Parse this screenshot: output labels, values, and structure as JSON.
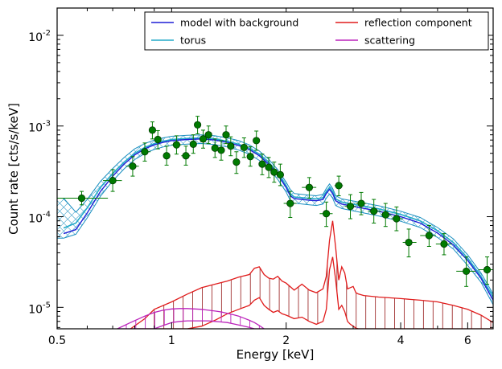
{
  "chart_data": {
    "type": "scatter",
    "xlabel": "Energy [keV]",
    "ylabel": "Count rate [cts/s/keV]",
    "x_scale": "log",
    "y_scale": "log",
    "xlim": [
      0.5,
      7.0
    ],
    "ylim": [
      5.8e-06,
      0.02
    ],
    "x_ticks": [
      {
        "value": 0.5,
        "label": "0.5"
      },
      {
        "value": 1,
        "label": "1"
      },
      {
        "value": 2,
        "label": "2"
      },
      {
        "value": 4,
        "label": "4"
      },
      {
        "value": 6,
        "label": "6"
      }
    ],
    "y_ticks": [
      {
        "value": 1e-05,
        "base": "10",
        "exp": "-5"
      },
      {
        "value": 0.0001,
        "base": "10",
        "exp": "-4"
      },
      {
        "value": 0.001,
        "base": "10",
        "exp": "-3"
      },
      {
        "value": 0.01,
        "base": "10",
        "exp": "-2"
      }
    ],
    "grid": false,
    "legend_position": "top-right",
    "legend": [
      {
        "label": "model with background",
        "color": "#1f1fd6"
      },
      {
        "label": "reflection component",
        "color": "#e01b1b"
      },
      {
        "label": "torus",
        "color": "#22aac8"
      },
      {
        "label": "scattering",
        "color": "#bb22bb"
      }
    ],
    "data_points": [
      {
        "x": 0.58,
        "y": 0.00016,
        "xlo": 0.45,
        "xhi": 0.68,
        "ylo": 0.000135,
        "yhi": 0.00019
      },
      {
        "x": 0.7,
        "y": 0.00025,
        "xlo": 0.66,
        "xhi": 0.74,
        "ylo": 0.00019,
        "yhi": 0.00033
      },
      {
        "x": 0.79,
        "y": 0.00036,
        "xlo": 0.76,
        "xhi": 0.82,
        "ylo": 0.00028,
        "yhi": 0.00046
      },
      {
        "x": 0.85,
        "y": 0.00052,
        "xlo": 0.83,
        "xhi": 0.88,
        "ylo": 0.00041,
        "yhi": 0.00065
      },
      {
        "x": 0.89,
        "y": 0.0009,
        "xlo": 0.875,
        "xhi": 0.905,
        "ylo": 0.00072,
        "yhi": 0.00111
      },
      {
        "x": 0.92,
        "y": 0.00071,
        "xlo": 0.905,
        "xhi": 0.935,
        "ylo": 0.00056,
        "yhi": 0.00089
      },
      {
        "x": 0.97,
        "y": 0.00047,
        "xlo": 0.95,
        "xhi": 0.99,
        "ylo": 0.00037,
        "yhi": 0.0006
      },
      {
        "x": 1.03,
        "y": 0.00062,
        "xlo": 1.0,
        "xhi": 1.06,
        "ylo": 0.00049,
        "yhi": 0.00078
      },
      {
        "x": 1.09,
        "y": 0.00047,
        "xlo": 1.06,
        "xhi": 1.12,
        "ylo": 0.00037,
        "yhi": 0.0006
      },
      {
        "x": 1.14,
        "y": 0.00063,
        "xlo": 1.12,
        "xhi": 1.16,
        "ylo": 0.0005,
        "yhi": 0.0008
      },
      {
        "x": 1.17,
        "y": 0.00103,
        "xlo": 1.16,
        "xhi": 1.19,
        "ylo": 0.00082,
        "yhi": 0.00128
      },
      {
        "x": 1.21,
        "y": 0.00072,
        "xlo": 1.19,
        "xhi": 1.23,
        "ylo": 0.00057,
        "yhi": 0.0009
      },
      {
        "x": 1.25,
        "y": 0.0008,
        "xlo": 1.23,
        "xhi": 1.27,
        "ylo": 0.00064,
        "yhi": 0.001
      },
      {
        "x": 1.3,
        "y": 0.00057,
        "xlo": 1.28,
        "xhi": 1.32,
        "ylo": 0.00045,
        "yhi": 0.00072
      },
      {
        "x": 1.35,
        "y": 0.00054,
        "xlo": 1.33,
        "xhi": 1.37,
        "ylo": 0.00042,
        "yhi": 0.00069
      },
      {
        "x": 1.39,
        "y": 0.0008,
        "xlo": 1.37,
        "xhi": 1.41,
        "ylo": 0.00064,
        "yhi": 0.001
      },
      {
        "x": 1.43,
        "y": 0.0006,
        "xlo": 1.41,
        "xhi": 1.45,
        "ylo": 0.00047,
        "yhi": 0.00076
      },
      {
        "x": 1.48,
        "y": 0.0004,
        "xlo": 1.46,
        "xhi": 1.51,
        "ylo": 0.0003,
        "yhi": 0.00052
      },
      {
        "x": 1.55,
        "y": 0.00058,
        "xlo": 1.52,
        "xhi": 1.58,
        "ylo": 0.00045,
        "yhi": 0.00074
      },
      {
        "x": 1.61,
        "y": 0.00046,
        "xlo": 1.58,
        "xhi": 1.64,
        "ylo": 0.00036,
        "yhi": 0.00059
      },
      {
        "x": 1.67,
        "y": 0.00069,
        "xlo": 1.65,
        "xhi": 1.7,
        "ylo": 0.00054,
        "yhi": 0.00088
      },
      {
        "x": 1.73,
        "y": 0.00038,
        "xlo": 1.7,
        "xhi": 1.77,
        "ylo": 0.00029,
        "yhi": 0.00049
      },
      {
        "x": 1.8,
        "y": 0.00035,
        "xlo": 1.77,
        "xhi": 1.83,
        "ylo": 0.00027,
        "yhi": 0.00045
      },
      {
        "x": 1.86,
        "y": 0.00031,
        "xlo": 1.83,
        "xhi": 1.89,
        "ylo": 0.00024,
        "yhi": 0.0004
      },
      {
        "x": 1.93,
        "y": 0.00029,
        "xlo": 1.89,
        "xhi": 1.97,
        "ylo": 0.00022,
        "yhi": 0.00038
      },
      {
        "x": 2.05,
        "y": 0.00014,
        "xlo": 1.97,
        "xhi": 2.13,
        "ylo": 9.8e-05,
        "yhi": 0.00019
      },
      {
        "x": 2.3,
        "y": 0.00021,
        "xlo": 2.2,
        "xhi": 2.4,
        "ylo": 0.00016,
        "yhi": 0.00027
      },
      {
        "x": 2.55,
        "y": 0.000108,
        "xlo": 2.45,
        "xhi": 2.65,
        "ylo": 7.8e-05,
        "yhi": 0.000145
      },
      {
        "x": 2.75,
        "y": 0.00022,
        "xlo": 2.68,
        "xhi": 2.82,
        "ylo": 0.00017,
        "yhi": 0.00028
      },
      {
        "x": 2.95,
        "y": 0.00013,
        "xlo": 2.85,
        "xhi": 3.05,
        "ylo": 9.5e-05,
        "yhi": 0.000175
      },
      {
        "x": 3.15,
        "y": 0.00014,
        "xlo": 3.05,
        "xhi": 3.25,
        "ylo": 0.000105,
        "yhi": 0.000185
      },
      {
        "x": 3.4,
        "y": 0.000115,
        "xlo": 3.28,
        "xhi": 3.55,
        "ylo": 8.5e-05,
        "yhi": 0.000155
      },
      {
        "x": 3.65,
        "y": 0.000105,
        "xlo": 3.55,
        "xhi": 3.78,
        "ylo": 7.8e-05,
        "yhi": 0.00014
      },
      {
        "x": 3.9,
        "y": 9.5e-05,
        "xlo": 3.78,
        "xhi": 4.05,
        "ylo": 7e-05,
        "yhi": 0.000128
      },
      {
        "x": 4.2,
        "y": 5.2e-05,
        "xlo": 4.05,
        "xhi": 4.4,
        "ylo": 3.6e-05,
        "yhi": 7.3e-05
      },
      {
        "x": 4.75,
        "y": 6.2e-05,
        "xlo": 4.5,
        "xhi": 4.95,
        "ylo": 4.7e-05,
        "yhi": 8e-05
      },
      {
        "x": 5.2,
        "y": 5e-05,
        "xlo": 4.95,
        "xhi": 5.45,
        "ylo": 3.8e-05,
        "yhi": 6.5e-05
      },
      {
        "x": 5.95,
        "y": 2.5e-05,
        "xlo": 5.6,
        "xhi": 6.3,
        "ylo": 1.7e-05,
        "yhi": 3.6e-05
      },
      {
        "x": 6.75,
        "y": 2.6e-05,
        "xlo": 6.4,
        "xhi": 7.0,
        "ylo": 1.8e-05,
        "yhi": 3.6e-05
      }
    ],
    "model_with_background": {
      "x": [
        0.52,
        0.56,
        0.6,
        0.65,
        0.7,
        0.75,
        0.8,
        0.85,
        0.9,
        0.95,
        1.0,
        1.1,
        1.2,
        1.3,
        1.4,
        1.5,
        1.6,
        1.7,
        1.8,
        1.9,
        2.0,
        2.05,
        2.1,
        2.2,
        2.3,
        2.4,
        2.5,
        2.55,
        2.6,
        2.65,
        2.7,
        2.8,
        3.0,
        3.5,
        4.0,
        4.5,
        5.0,
        5.5,
        6.0,
        6.5,
        7.0
      ],
      "y": [
        6.5e-05,
        7.2e-05,
        0.00011,
        0.00019,
        0.00028,
        0.00038,
        0.00048,
        0.00056,
        0.00062,
        0.00066,
        0.00069,
        0.00071,
        0.00072,
        0.0007,
        0.00066,
        0.00061,
        0.00055,
        0.00047,
        0.00038,
        0.00029,
        0.00021,
        0.00017,
        0.000158,
        0.000155,
        0.000152,
        0.00015,
        0.000155,
        0.00018,
        0.0002,
        0.00018,
        0.00015,
        0.000138,
        0.00013,
        0.000115,
        0.0001,
        8.5e-05,
        6.6e-05,
        4.9e-05,
        3.3e-05,
        2.1e-05,
        1.2e-05
      ]
    },
    "torus": {
      "x": [
        0.52,
        0.56,
        0.6,
        0.65,
        0.7,
        0.75,
        0.8,
        0.85,
        0.9,
        0.95,
        1.0,
        1.1,
        1.2,
        1.3,
        1.4,
        1.5,
        1.6,
        1.7,
        1.8,
        1.9,
        2.0,
        2.05,
        2.1,
        2.2,
        2.3,
        2.4,
        2.5,
        2.55,
        2.6,
        2.65,
        2.7,
        2.8,
        3.0,
        3.5,
        4.0,
        4.5,
        5.0,
        5.5,
        6.0,
        6.5,
        7.0
      ],
      "y": [
        7.5e-05,
        8.5e-05,
        0.000125,
        0.00021,
        0.0003,
        0.0004,
        0.0005,
        0.00058,
        0.00064,
        0.00068,
        0.00071,
        0.00073,
        0.00074,
        0.00072,
        0.00068,
        0.00063,
        0.00057,
        0.00049,
        0.0004,
        0.0003,
        0.00022,
        0.00018,
        0.000165,
        0.000162,
        0.000159,
        0.000157,
        0.000162,
        0.00019,
        0.00021,
        0.00019,
        0.000157,
        0.000145,
        0.000137,
        0.000122,
        0.000106,
        9e-05,
        7e-05,
        5.2e-05,
        3.5e-05,
        2.2e-05,
        1.3e-05
      ]
    },
    "model_band": {
      "x": [
        0.5,
        0.52,
        0.56,
        0.6,
        0.65,
        0.7,
        0.75,
        0.8,
        0.85,
        0.9,
        0.95,
        1.0,
        1.1,
        1.2,
        1.3,
        1.4,
        1.5,
        1.6,
        1.7,
        1.8,
        1.9,
        2.0,
        2.05,
        2.1,
        2.2,
        2.3,
        2.4,
        2.5,
        2.55,
        2.6,
        2.65,
        2.7,
        2.8,
        3.0,
        3.5,
        4.0,
        4.5,
        5.0,
        5.5,
        6.0,
        6.5,
        7.0
      ],
      "lower": [
        5.8e-05,
        5.8e-05,
        6.4e-05,
        9.7e-05,
        0.000168,
        0.000248,
        0.000337,
        0.000426,
        0.000498,
        0.000551,
        0.000587,
        0.000614,
        0.000632,
        0.000641,
        0.000623,
        0.000587,
        0.000543,
        0.00049,
        0.000418,
        0.000338,
        0.000258,
        0.000187,
        0.000151,
        0.000141,
        0.000138,
        0.000135,
        0.000133,
        0.000138,
        0.00016,
        0.000178,
        0.00016,
        0.000133,
        0.000123,
        0.000116,
        0.000102,
        8.9e-05,
        7.6e-05,
        5.9e-05,
        4.4e-05,
        2.9e-05,
        1.9e-05,
        1.07e-05
      ],
      "upper": [
        0.00016,
        0.00016,
        0.000112,
        0.000155,
        0.000245,
        0.00034,
        0.00045,
        0.00056,
        0.00064,
        0.0007,
        0.00074,
        0.00077,
        0.00079,
        0.0008,
        0.00078,
        0.00074,
        0.00069,
        0.00062,
        0.00053,
        0.00043,
        0.00033,
        0.00024,
        0.0002,
        0.00018,
        0.000176,
        0.000173,
        0.00017,
        0.000176,
        0.000205,
        0.00023,
        0.000205,
        0.00017,
        0.000157,
        0.000149,
        0.000132,
        0.000115,
        9.8e-05,
        7.6e-05,
        5.7e-05,
        3.8e-05,
        2.4e-05,
        1.4e-05
      ]
    },
    "reflection_component": {
      "x": [
        0.78,
        0.85,
        0.9,
        1.0,
        1.1,
        1.2,
        1.3,
        1.4,
        1.5,
        1.6,
        1.65,
        1.7,
        1.75,
        1.8,
        1.85,
        1.9,
        1.95,
        2.0,
        2.1,
        2.2,
        2.3,
        2.4,
        2.5,
        2.55,
        2.6,
        2.65,
        2.7,
        2.75,
        2.8,
        2.85,
        2.9,
        2.95,
        3.0,
        3.05,
        3.1,
        3.2,
        3.5,
        4.0,
        4.5,
        5.0,
        5.5,
        6.0,
        6.5,
        7.0
      ],
      "upper": [
        5.8e-06,
        7.5e-06,
        9.5e-06,
        1.15e-05,
        1.4e-05,
        1.65e-05,
        1.8e-05,
        1.95e-05,
        2.15e-05,
        2.3e-05,
        2.7e-05,
        2.8e-05,
        2.3e-05,
        2.1e-05,
        2.05e-05,
        2.2e-05,
        1.95e-05,
        1.85e-05,
        1.55e-05,
        1.8e-05,
        1.55e-05,
        1.45e-05,
        1.6e-05,
        2.2e-05,
        5.5e-05,
        9e-05,
        4.5e-05,
        2e-05,
        2.8e-05,
        2.4e-05,
        1.6e-05,
        1.65e-05,
        1.7e-05,
        1.45e-05,
        1.4e-05,
        1.35e-05,
        1.3e-05,
        1.25e-05,
        1.2e-05,
        1.15e-05,
        1.05e-05,
        9.5e-06,
        8.2e-06,
        6.8e-06
      ],
      "lower": [
        5.8e-06,
        5.8e-06,
        5.8e-06,
        5.8e-06,
        5.8e-06,
        6.2e-06,
        7.2e-06,
        8.5e-06,
        9.5e-06,
        1.05e-05,
        1.2e-05,
        1.28e-05,
        1.05e-05,
        9.5e-06,
        8.8e-06,
        9.2e-06,
        8.5e-06,
        8.2e-06,
        7.5e-06,
        7.8e-06,
        7e-06,
        6.5e-06,
        7e-06,
        9.5e-06,
        2.6e-05,
        3.6e-05,
        2e-05,
        9.5e-06,
        1.05e-05,
        9e-06,
        7e-06,
        6.5e-06,
        6.2e-06,
        5.9e-06,
        5.8e-06,
        5.8e-06,
        5.8e-06,
        5.8e-06,
        5.8e-06,
        5.8e-06,
        5.8e-06,
        5.8e-06,
        5.8e-06,
        5.8e-06
      ]
    },
    "scattering": {
      "x": [
        0.72,
        0.78,
        0.85,
        0.9,
        0.95,
        1.0,
        1.05,
        1.1,
        1.15,
        1.2,
        1.25,
        1.3,
        1.35,
        1.4,
        1.45,
        1.5,
        1.55,
        1.6,
        1.65,
        1.7,
        1.75
      ],
      "upper": [
        5.8e-06,
        6.8e-06,
        8e-06,
        8.8e-06,
        9.3e-06,
        9.6e-06,
        9.7e-06,
        9.7e-06,
        9.6e-06,
        9.5e-06,
        9.3e-06,
        9.1e-06,
        8.9e-06,
        8.6e-06,
        8.3e-06,
        8e-06,
        7.6e-06,
        7.2e-06,
        6.8e-06,
        6.3e-06,
        5.8e-06
      ],
      "lower": [
        5.8e-06,
        5.8e-06,
        5.8e-06,
        5.8e-06,
        6.3e-06,
        6.8e-06,
        7e-06,
        7.1e-06,
        7.1e-06,
        7.1e-06,
        7.1e-06,
        7e-06,
        6.9e-06,
        6.8e-06,
        6.6e-06,
        6.4e-06,
        6.2e-06,
        6e-06,
        5.8e-06,
        5.8e-06,
        5.8e-06
      ]
    },
    "colors": {
      "data_points": "#007a00",
      "model": "#1f1fd6",
      "torus": "#22aac8",
      "reflection": "#e01b1b",
      "reflection_hatch": "#a03030",
      "scattering": "#bb22bb"
    }
  }
}
